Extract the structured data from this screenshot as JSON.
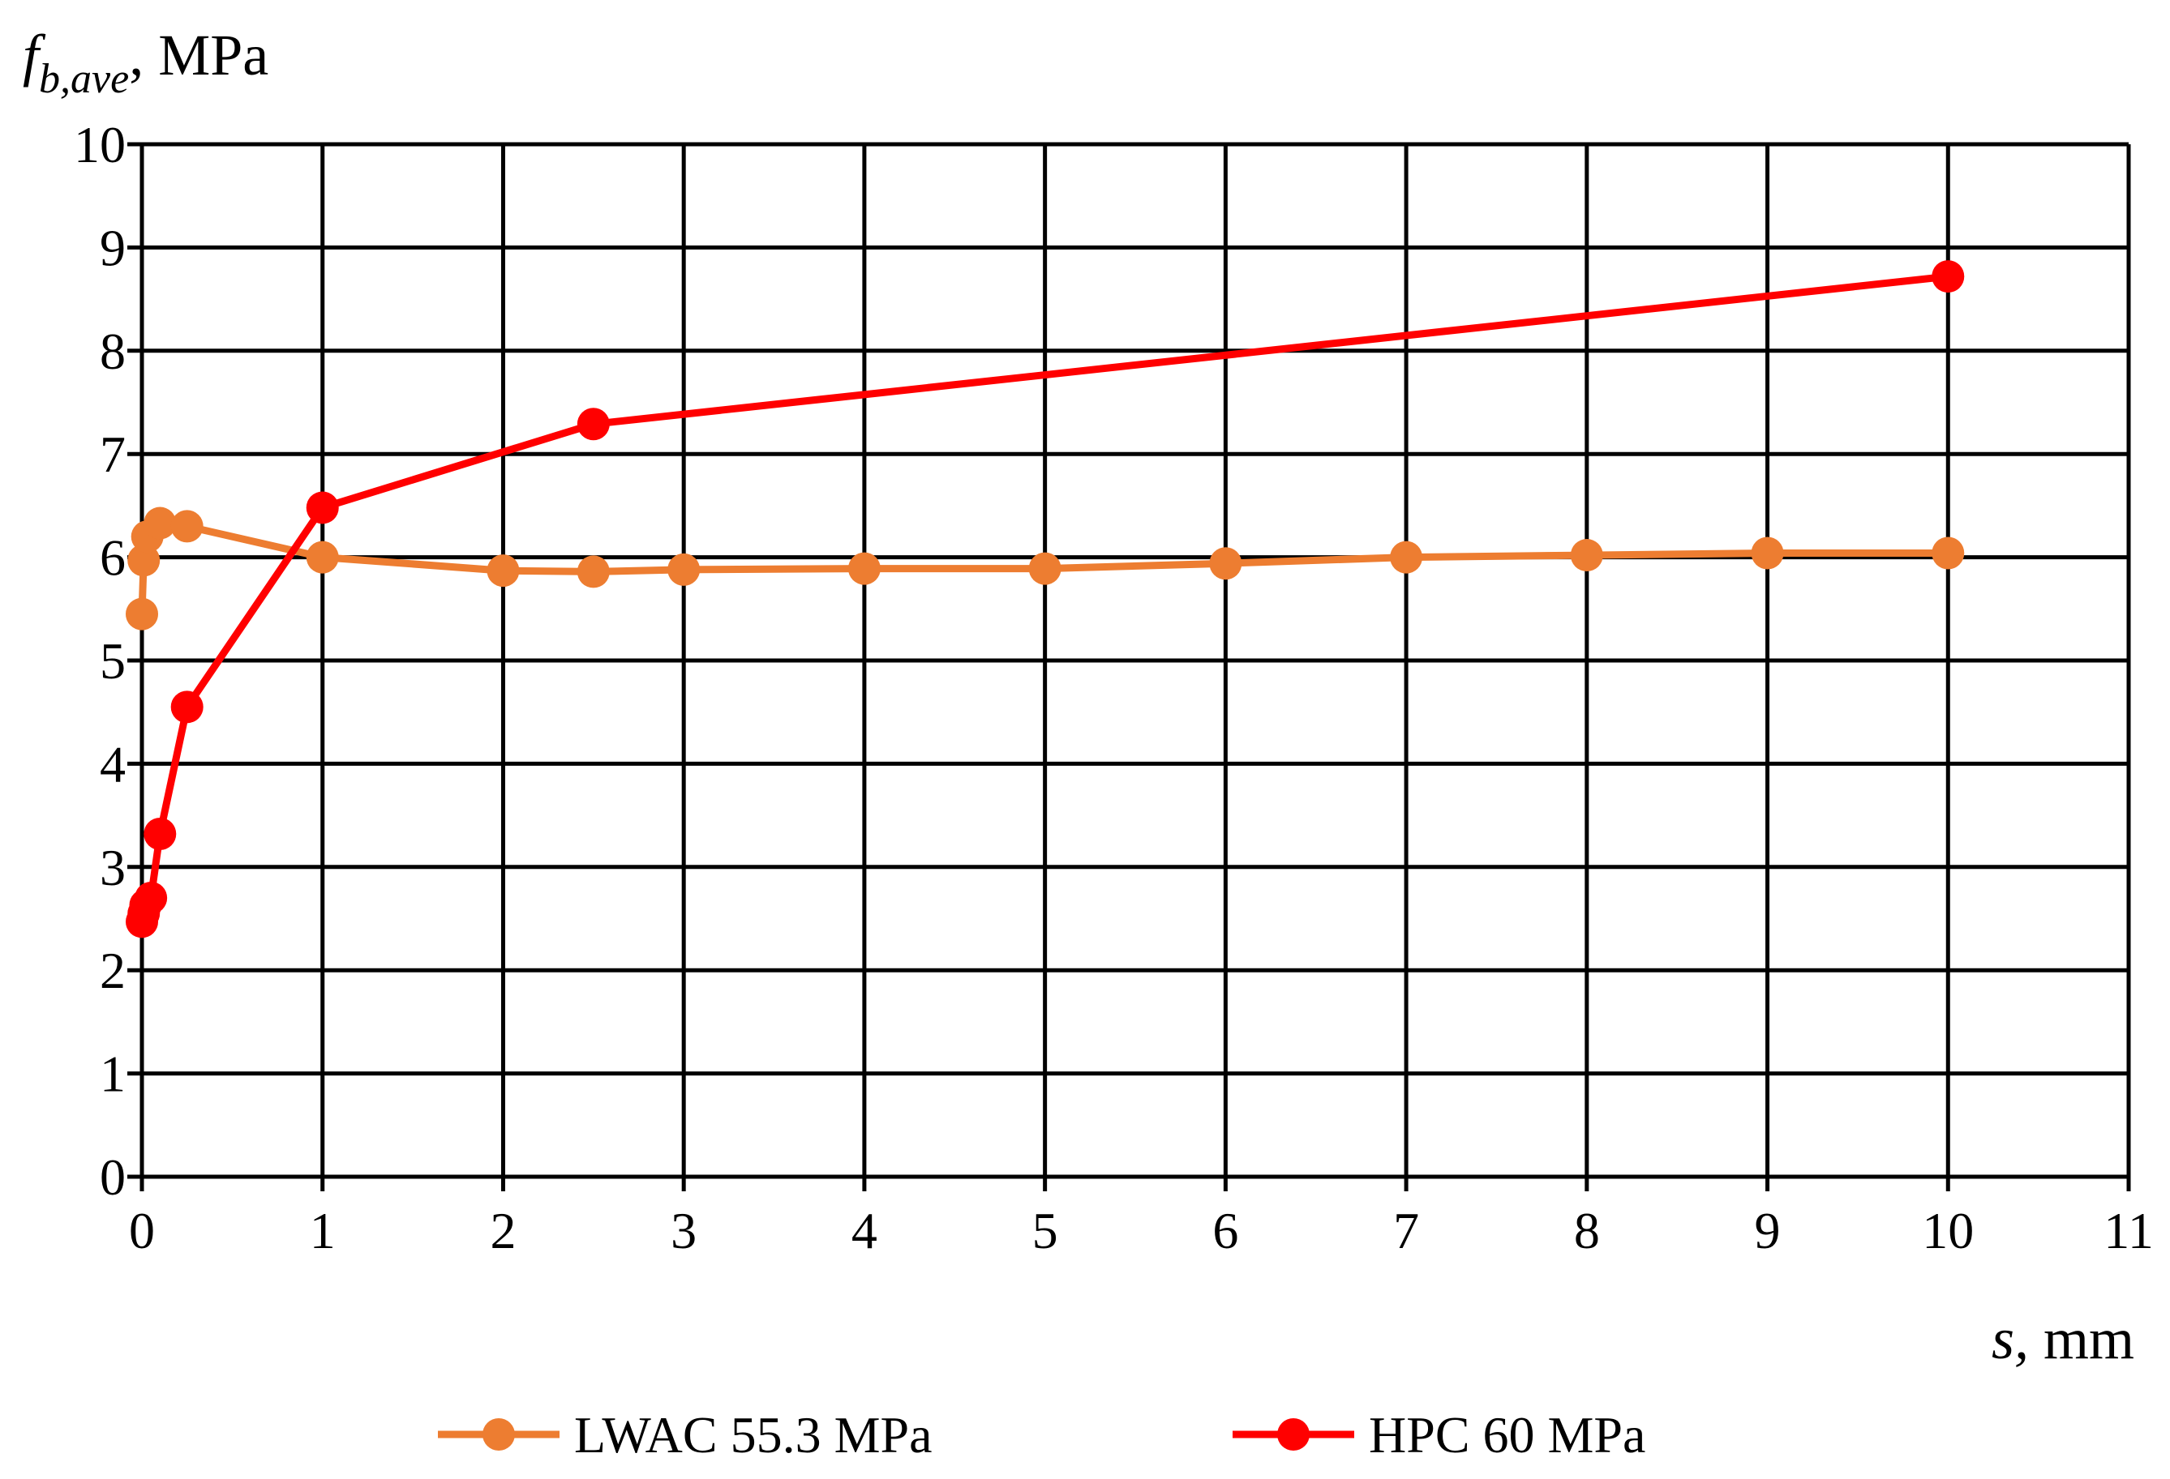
{
  "chart_data": {
    "type": "line",
    "title": "",
    "ylabel": {
      "var_main": "f",
      "var_sub": "b,ave",
      "unit": ", MPa"
    },
    "xlabel": {
      "var_main": "s,",
      "unit": " mm"
    },
    "xlim": [
      0,
      11
    ],
    "ylim": [
      0,
      10
    ],
    "xticks": [
      "0",
      "1",
      "2",
      "3",
      "4",
      "5",
      "6",
      "7",
      "8",
      "9",
      "10",
      "11"
    ],
    "yticks": [
      "0",
      "1",
      "2",
      "3",
      "4",
      "5",
      "6",
      "7",
      "8",
      "9",
      "10"
    ],
    "grid": true,
    "legend_position": "bottom",
    "series": [
      {
        "name": "LWAC 55.3 MPa",
        "color": "#ED7D31",
        "x": [
          0,
          0.01,
          0.03,
          0.1,
          0.25,
          1,
          2,
          2.5,
          3,
          4,
          5,
          6,
          7,
          8,
          9,
          10
        ],
        "y": [
          5.45,
          5.97,
          6.2,
          6.33,
          6.3,
          6.0,
          5.87,
          5.86,
          5.88,
          5.89,
          5.89,
          5.94,
          6.0,
          6.02,
          6.04,
          6.04
        ]
      },
      {
        "name": "HPC 60 MPa",
        "color": "#FF0000",
        "x": [
          0,
          0.01,
          0.02,
          0.05,
          0.1,
          0.25,
          1,
          2.5,
          10
        ],
        "y": [
          2.47,
          2.55,
          2.63,
          2.7,
          3.32,
          4.55,
          6.48,
          7.29,
          8.72
        ]
      }
    ]
  }
}
